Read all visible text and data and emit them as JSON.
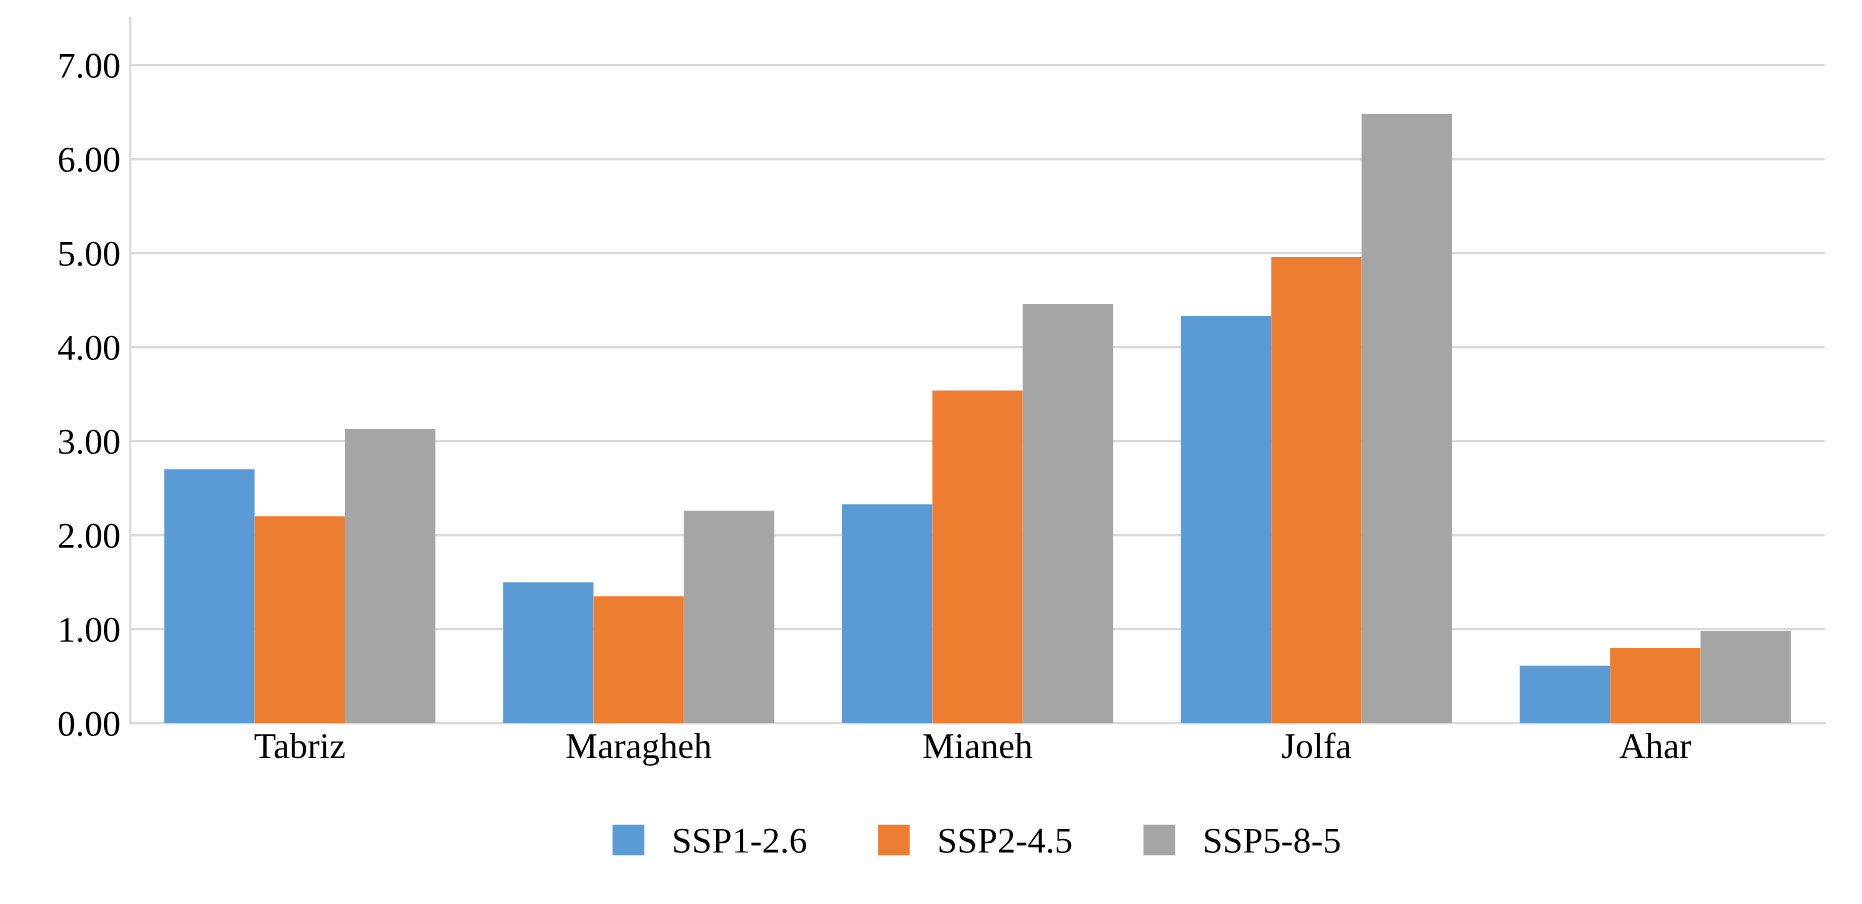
{
  "chart_data": {
    "type": "bar",
    "categories": [
      "Tabriz",
      "Maragheh",
      "Mianeh",
      "Jolfa",
      "Ahar"
    ],
    "series": [
      {
        "name": "SSP1-2.6",
        "color": "#5b9bd5",
        "values": [
          2.7,
          1.5,
          2.33,
          4.33,
          0.61
        ]
      },
      {
        "name": "SSP2-4.5",
        "color": "#ed7d31",
        "values": [
          2.2,
          1.35,
          3.54,
          4.96,
          0.8
        ]
      },
      {
        "name": "SSP5-8-5",
        "color": "#a5a5a5",
        "values": [
          3.13,
          2.26,
          4.46,
          6.48,
          0.98
        ]
      }
    ],
    "ylim": [
      0,
      7.5
    ],
    "yticks": [
      {
        "value": 0,
        "label": "0.00"
      },
      {
        "value": 1,
        "label": "1.00"
      },
      {
        "value": 2,
        "label": "2.00"
      },
      {
        "value": 3,
        "label": "3.00"
      },
      {
        "value": 4,
        "label": "4.00"
      },
      {
        "value": 5,
        "label": "5.00"
      },
      {
        "value": 6,
        "label": "6.00"
      },
      {
        "value": 7,
        "label": "7.00"
      }
    ],
    "grid": "y",
    "legend": "bottom"
  }
}
